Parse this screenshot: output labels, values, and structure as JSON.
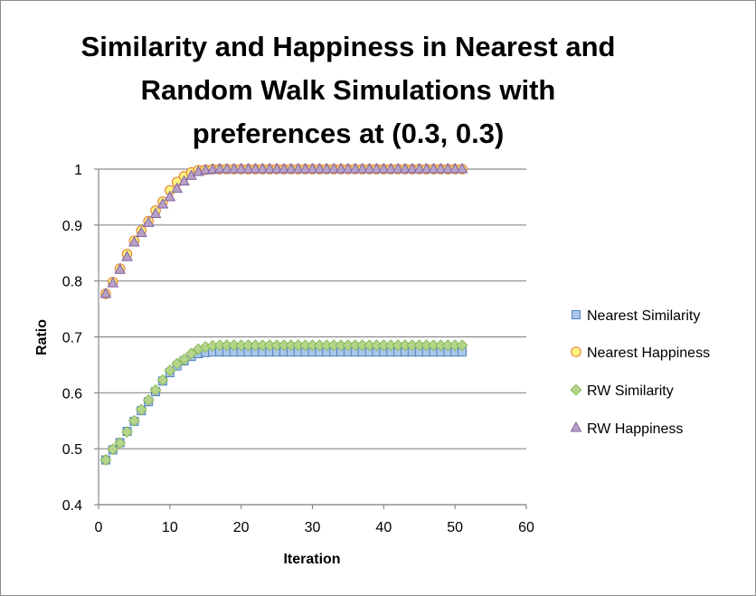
{
  "chart_data": {
    "type": "scatter",
    "title_lines": [
      "Similarity and Happiness in Nearest and",
      "Random Walk Simulations with",
      "preferences at (0.3, 0.3)"
    ],
    "xlabel": "Iteration",
    "ylabel": "Ratio",
    "xlim": [
      0,
      60
    ],
    "ylim": [
      0.4,
      1.0
    ],
    "xticks": [
      "0",
      "10",
      "20",
      "30",
      "40",
      "50",
      "60"
    ],
    "yticks": [
      "0.4",
      "0.5",
      "0.6",
      "0.7",
      "0.8",
      "0.9",
      "1"
    ],
    "grid": "horizontal",
    "legend_position": "right",
    "x": [
      1,
      2,
      3,
      4,
      5,
      6,
      7,
      8,
      9,
      10,
      11,
      12,
      13,
      14,
      15,
      16,
      17,
      18,
      19,
      20,
      21,
      22,
      23,
      24,
      25,
      26,
      27,
      28,
      29,
      30,
      31,
      32,
      33,
      34,
      35,
      36,
      37,
      38,
      39,
      40,
      41,
      42,
      43,
      44,
      45,
      46,
      47,
      48,
      49,
      50,
      51
    ],
    "series": [
      {
        "name": "Nearest Similarity",
        "marker": "square",
        "fill": "#a9c6ea",
        "stroke": "#4f81bd",
        "values": [
          0.48,
          0.498,
          0.511,
          0.531,
          0.549,
          0.568,
          0.584,
          0.602,
          0.621,
          0.636,
          0.648,
          0.657,
          0.665,
          0.67,
          0.672,
          0.673,
          0.673,
          0.673,
          0.673,
          0.673,
          0.673,
          0.673,
          0.673,
          0.673,
          0.673,
          0.673,
          0.673,
          0.673,
          0.673,
          0.673,
          0.673,
          0.673,
          0.673,
          0.673,
          0.673,
          0.673,
          0.673,
          0.673,
          0.673,
          0.673,
          0.673,
          0.673,
          0.673,
          0.673,
          0.673,
          0.673,
          0.673,
          0.673,
          0.673,
          0.673,
          0.673
        ]
      },
      {
        "name": "Nearest Happiness",
        "marker": "circle",
        "fill": "#fff17a",
        "stroke": "#e07b39",
        "values": [
          0.777,
          0.798,
          0.822,
          0.848,
          0.872,
          0.89,
          0.907,
          0.926,
          0.942,
          0.962,
          0.977,
          0.987,
          0.994,
          0.998,
          0.999,
          1.0,
          1.0,
          1.0,
          1.0,
          1.0,
          1.0,
          1.0,
          1.0,
          1.0,
          1.0,
          1.0,
          1.0,
          1.0,
          1.0,
          1.0,
          1.0,
          1.0,
          1.0,
          1.0,
          1.0,
          1.0,
          1.0,
          1.0,
          1.0,
          1.0,
          1.0,
          1.0,
          1.0,
          1.0,
          1.0,
          1.0,
          1.0,
          1.0,
          1.0,
          1.0,
          1.0
        ]
      },
      {
        "name": "RW Similarity",
        "marker": "diamond",
        "fill": "#b5d68a",
        "stroke": "#8db85c",
        "values": [
          0.48,
          0.499,
          0.51,
          0.53,
          0.55,
          0.57,
          0.587,
          0.605,
          0.623,
          0.64,
          0.652,
          0.66,
          0.67,
          0.678,
          0.682,
          0.684,
          0.685,
          0.685,
          0.685,
          0.685,
          0.685,
          0.685,
          0.685,
          0.685,
          0.685,
          0.685,
          0.685,
          0.685,
          0.685,
          0.685,
          0.685,
          0.685,
          0.685,
          0.685,
          0.685,
          0.685,
          0.685,
          0.685,
          0.685,
          0.685,
          0.685,
          0.685,
          0.685,
          0.685,
          0.685,
          0.685,
          0.685,
          0.685,
          0.685,
          0.685,
          0.685
        ]
      },
      {
        "name": "RW Happiness",
        "marker": "triangle",
        "fill": "#b8a1c6",
        "stroke": "#8064a2",
        "values": [
          0.777,
          0.796,
          0.82,
          0.843,
          0.869,
          0.886,
          0.904,
          0.92,
          0.937,
          0.95,
          0.965,
          0.978,
          0.988,
          0.995,
          0.998,
          0.999,
          1.0,
          1.0,
          1.0,
          1.0,
          1.0,
          1.0,
          1.0,
          1.0,
          1.0,
          1.0,
          1.0,
          1.0,
          1.0,
          1.0,
          1.0,
          1.0,
          1.0,
          1.0,
          1.0,
          1.0,
          1.0,
          1.0,
          1.0,
          1.0,
          1.0,
          1.0,
          1.0,
          1.0,
          1.0,
          1.0,
          1.0,
          1.0,
          1.0,
          1.0,
          1.0
        ]
      }
    ]
  }
}
